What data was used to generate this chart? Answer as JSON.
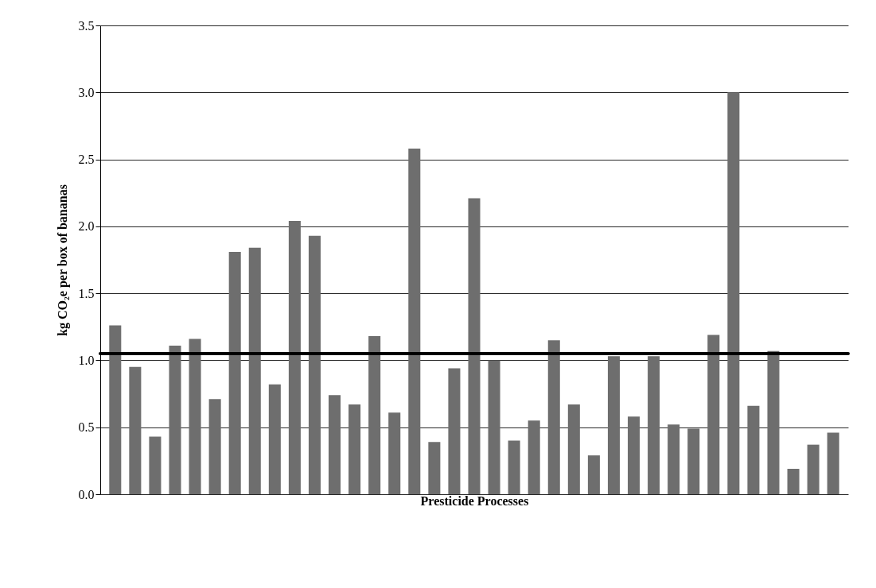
{
  "chart_data": {
    "type": "bar",
    "xlabel": "Presticide Processes",
    "ylabel": "kg CO₂e per box of bananas",
    "categories": [
      null,
      null,
      null,
      null,
      null,
      null,
      null,
      null,
      null,
      null,
      null,
      null,
      null,
      null,
      null,
      null,
      null,
      null,
      null,
      null,
      null,
      null,
      null,
      null,
      null,
      null,
      null,
      null,
      null,
      null,
      null,
      null,
      null,
      null,
      null,
      null,
      null
    ],
    "values": [
      1.26,
      0.95,
      0.43,
      1.11,
      1.16,
      0.71,
      1.81,
      1.84,
      0.82,
      2.04,
      1.93,
      0.74,
      0.67,
      1.18,
      0.61,
      2.58,
      0.39,
      0.94,
      2.21,
      1.0,
      0.4,
      0.55,
      1.15,
      0.67,
      0.29,
      1.03,
      0.58,
      1.03,
      0.52,
      0.49,
      1.19,
      3.0,
      0.66,
      1.07,
      0.19,
      0.37,
      0.46
    ],
    "color": "#6e6e6e",
    "ylim": [
      0,
      3.5
    ],
    "yticks": [
      {
        "value": 0,
        "label": "0.0"
      },
      {
        "value": 0.5,
        "label": "0.5"
      },
      {
        "value": 1,
        "label": "1.0"
      },
      {
        "value": 1.5,
        "label": "1.5"
      },
      {
        "value": 2,
        "label": "2.0"
      },
      {
        "value": 2.5,
        "label": "2.5"
      },
      {
        "value": 3,
        "label": "3.0"
      },
      {
        "value": 3.5,
        "label": "3.5"
      }
    ],
    "grid": "y",
    "tick_labels": "y",
    "ref_lines": [
      {
        "axis": "y",
        "value": 1.05,
        "color": "#000000"
      }
    ]
  }
}
